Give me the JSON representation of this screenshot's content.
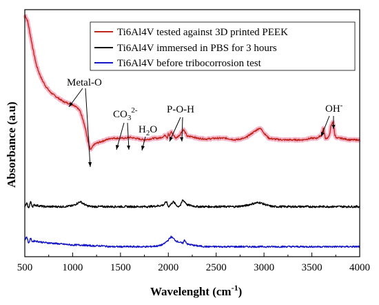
{
  "chart_data": {
    "type": "line",
    "xlabel": "Wavelenght (cm",
    "xlabel_sup": "-1",
    "xlabel_close": ")",
    "ylabel": "Absorbance (a.u)",
    "xlim": [
      500,
      4000
    ],
    "xticks": [
      "500",
      "1000",
      "1500",
      "2000",
      "2500",
      "3000",
      "3500",
      "4000"
    ],
    "yticks_labeled": false,
    "legend_position": "top-right",
    "series": [
      {
        "name": "Ti6Al4V tested against 3D printed PEEK",
        "color": "#c0261c",
        "halo": "#f4b6c8",
        "noise": 0.5,
        "x": [
          500,
          530,
          560,
          590,
          620,
          650,
          680,
          720,
          760,
          800,
          850,
          900,
          950,
          980,
          1000,
          1040,
          1080,
          1110,
          1140,
          1160,
          1180,
          1190,
          1200,
          1220,
          1250,
          1300,
          1350,
          1400,
          1450,
          1500,
          1550,
          1600,
          1650,
          1700,
          1750,
          1800,
          1850,
          1900,
          1950,
          1970,
          1990,
          2000,
          2010,
          2030,
          2050,
          2080,
          2100,
          2120,
          2140,
          2160,
          2180,
          2200,
          2250,
          2300,
          2400,
          2500,
          2600,
          2700,
          2800,
          2850,
          2900,
          2950,
          2980,
          3000,
          3050,
          3100,
          3200,
          3300,
          3400,
          3500,
          3550,
          3580,
          3600,
          3620,
          3640,
          3660,
          3680,
          3700,
          3720,
          3740,
          3760,
          3800,
          3900,
          4000
        ],
        "y": [
          97,
          93,
          84,
          75,
          67,
          62,
          58,
          54,
          51,
          49,
          47,
          45,
          44,
          43.5,
          43,
          42,
          39,
          34,
          27,
          21,
          17,
          16,
          17,
          19,
          20,
          21,
          22,
          23,
          23,
          23,
          23,
          23.5,
          23,
          22.5,
          22,
          22.5,
          23,
          23,
          24,
          25,
          23,
          26,
          24,
          27,
          25,
          23,
          24,
          25,
          27,
          28,
          26,
          24,
          24,
          23,
          22.5,
          23,
          23,
          22,
          23,
          25,
          27,
          29,
          28,
          26,
          23,
          22.5,
          22,
          22,
          22,
          23,
          23,
          24,
          25,
          29,
          23,
          23,
          24,
          30,
          33,
          25,
          23,
          23,
          22,
          22
        ]
      },
      {
        "name": "Ti6Al4V immersed in PBS for 3 hours",
        "color": "#000000",
        "halo": "",
        "noise": 0.6,
        "x": [
          500,
          520,
          540,
          560,
          580,
          600,
          650,
          700,
          800,
          900,
          1000,
          1050,
          1080,
          1120,
          1150,
          1200,
          1300,
          1400,
          1500,
          1600,
          1700,
          1800,
          1900,
          1950,
          1980,
          2000,
          2020,
          2050,
          2100,
          2130,
          2150,
          2170,
          2200,
          2250,
          2300,
          2400,
          2500,
          2600,
          2700,
          2800,
          2900,
          2950,
          3000,
          3050,
          3100,
          3200,
          3300,
          3400,
          3500,
          3600,
          3700,
          3800,
          3900,
          4000
        ],
        "y": [
          -18,
          -16,
          -19,
          -15,
          -18,
          -17,
          -17.5,
          -18,
          -18,
          -18,
          -17.5,
          -16,
          -15,
          -16.5,
          -17.5,
          -18,
          -18,
          -18,
          -18,
          -18,
          -18,
          -18,
          -17.5,
          -17,
          -15,
          -18,
          -17,
          -15,
          -18,
          -17,
          -14,
          -15,
          -17,
          -17.5,
          -18,
          -18,
          -18,
          -18,
          -18,
          -17.5,
          -16,
          -15.5,
          -16.5,
          -17.5,
          -18,
          -18,
          -18,
          -18,
          -18,
          -18,
          -18,
          -18,
          -18,
          -18
        ]
      },
      {
        "name": "Ti6Al4V before tribocorrosion test",
        "color": "#1414c8",
        "halo": "",
        "noise": 0.5,
        "x": [
          500,
          520,
          540,
          560,
          580,
          600,
          650,
          700,
          800,
          900,
          1000,
          1100,
          1200,
          1300,
          1400,
          1500,
          1600,
          1700,
          1800,
          1900,
          1950,
          2000,
          2030,
          2050,
          2080,
          2100,
          2150,
          2170,
          2200,
          2300,
          2400,
          2500,
          2600,
          2700,
          2800,
          2900,
          3000,
          3100,
          3200,
          3300,
          3400,
          3500,
          3600,
          3700,
          3800,
          3900,
          4000
        ],
        "y": [
          -38,
          -36,
          -40,
          -37,
          -39,
          -38.5,
          -39,
          -39.5,
          -40,
          -40.5,
          -41,
          -41,
          -41.5,
          -41.5,
          -42,
          -42,
          -42,
          -42,
          -42,
          -41.5,
          -40.5,
          -38,
          -36,
          -37,
          -38.5,
          -39,
          -40,
          -38,
          -40.5,
          -41.5,
          -42,
          -42,
          -42,
          -42,
          -42,
          -42,
          -42,
          -42,
          -42,
          -42,
          -42,
          -42,
          -42,
          -42,
          -42,
          -42,
          -42
        ]
      }
    ],
    "annotations": [
      {
        "text": "Metal-O"
      },
      {
        "text": "CO",
        "sub": "3",
        "sup": "2-"
      },
      {
        "text": "H",
        "sub": "2",
        "tail": "O"
      },
      {
        "text": "P-O-H"
      },
      {
        "text": "OH",
        "sup": "-"
      }
    ]
  }
}
